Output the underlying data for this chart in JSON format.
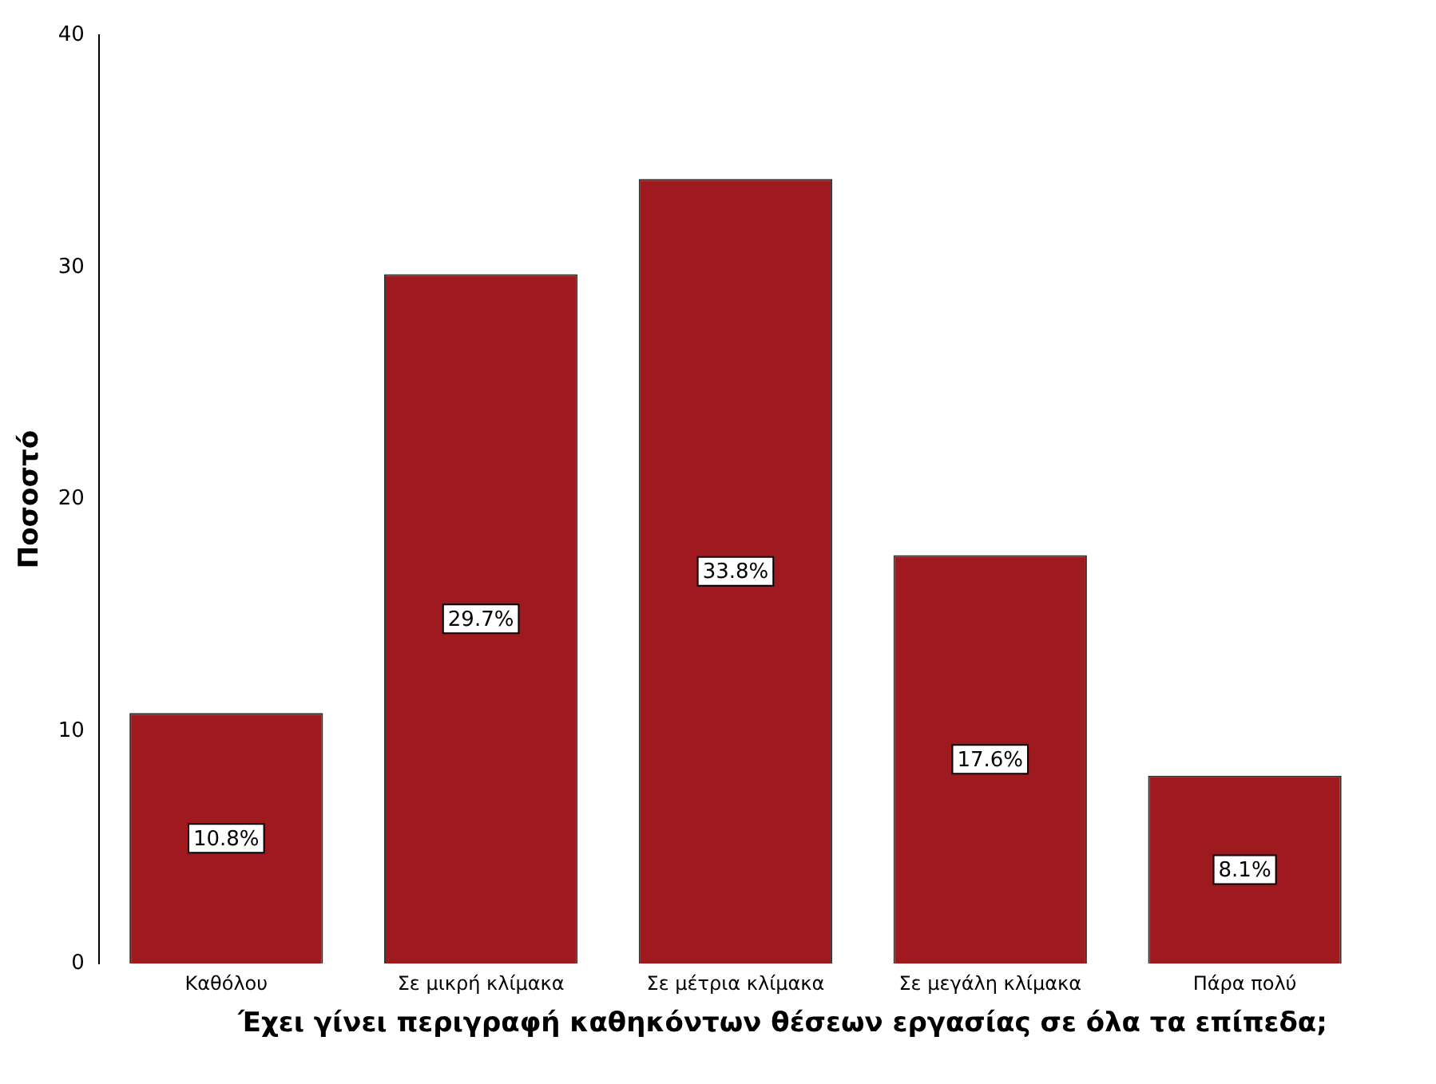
{
  "chart_data": {
    "type": "bar",
    "xlabel": "Έχει γίνει περιγραφή καθηκόντων θέσεων εργασίας σε όλα τα επίπεδα;",
    "ylabel": "Ποσοστό",
    "categories": [
      "Καθόλου",
      "Σε μικρή κλίμακα",
      "Σε μέτρια κλίμακα",
      "Σε μεγάλη κλίμακα",
      "Πάρα πολύ"
    ],
    "values": [
      10.8,
      29.7,
      33.8,
      17.6,
      8.1
    ],
    "value_labels": [
      "10.8%",
      "29.7%",
      "33.8%",
      "17.6%",
      "8.1%"
    ],
    "color": "#9e1a1e",
    "ylim": [
      0,
      40
    ],
    "yticks": [
      0,
      10,
      20,
      30,
      40
    ],
    "grid": false,
    "legend": false
  }
}
